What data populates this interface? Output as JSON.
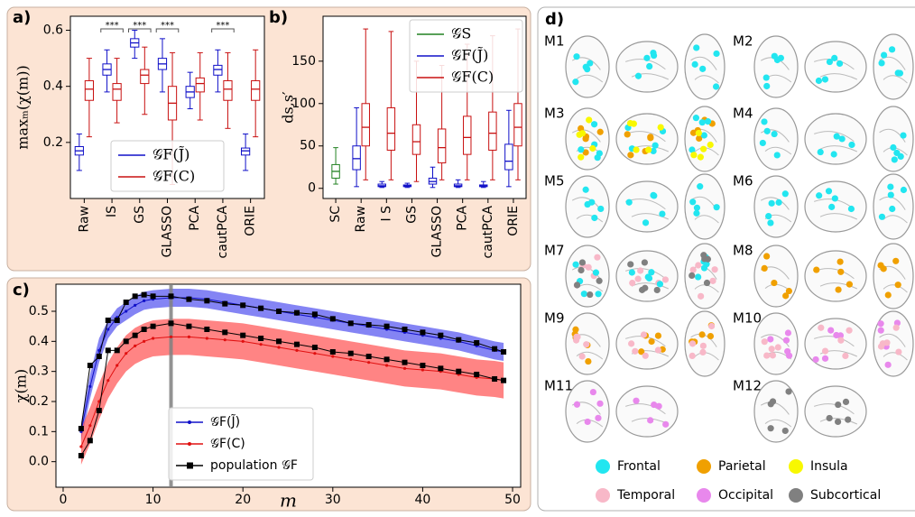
{
  "chart_data": [
    {
      "type": "box",
      "panel": "a)",
      "ylabel": "maxₘ(χ(m))",
      "categories": [
        "Raw",
        "IS",
        "GS",
        "GLASSO",
        "PCA",
        "cautPCA",
        "ORIE"
      ],
      "ylim": [
        0,
        0.65
      ],
      "yticks": [
        0.2,
        0.4,
        0.6
      ],
      "legend": "lower center",
      "series": [
        {
          "name": "𝒢F(J̃)",
          "color": "#1010c8",
          "values": [
            {
              "low": 0.1,
              "q1": 0.155,
              "median": 0.17,
              "q3": 0.185,
              "high": 0.23
            },
            {
              "low": 0.38,
              "q1": 0.44,
              "median": 0.46,
              "q3": 0.48,
              "high": 0.53
            },
            {
              "low": 0.5,
              "q1": 0.54,
              "median": 0.555,
              "q3": 0.57,
              "high": 0.6
            },
            {
              "low": 0.38,
              "q1": 0.46,
              "median": 0.48,
              "q3": 0.5,
              "high": 0.57
            },
            {
              "low": 0.32,
              "q1": 0.36,
              "median": 0.38,
              "q3": 0.4,
              "high": 0.45
            },
            {
              "low": 0.38,
              "q1": 0.44,
              "median": 0.46,
              "q3": 0.475,
              "high": 0.53
            },
            {
              "low": 0.1,
              "q1": 0.155,
              "median": 0.17,
              "q3": 0.18,
              "high": 0.23
            }
          ]
        },
        {
          "name": "𝒢F(C)",
          "color": "#c81010",
          "values": [
            {
              "low": 0.22,
              "q1": 0.35,
              "median": 0.39,
              "q3": 0.42,
              "high": 0.5
            },
            {
              "low": 0.27,
              "q1": 0.35,
              "median": 0.39,
              "q3": 0.41,
              "high": 0.5
            },
            {
              "low": 0.3,
              "q1": 0.41,
              "median": 0.44,
              "q3": 0.46,
              "high": 0.54
            },
            {
              "low": 0.05,
              "q1": 0.28,
              "median": 0.34,
              "q3": 0.4,
              "high": 0.52
            },
            {
              "low": 0.28,
              "q1": 0.38,
              "median": 0.41,
              "q3": 0.43,
              "high": 0.52
            },
            {
              "low": 0.25,
              "q1": 0.35,
              "median": 0.39,
              "q3": 0.42,
              "high": 0.52
            },
            {
              "low": 0.22,
              "q1": 0.35,
              "median": 0.39,
              "q3": 0.42,
              "high": 0.53
            }
          ]
        }
      ],
      "annotations": [
        {
          "label": "***",
          "category": "IS"
        },
        {
          "label": "***",
          "category": "GS"
        },
        {
          "label": "***",
          "category": "GLASSO"
        },
        {
          "label": "***",
          "category": "cautPCA"
        }
      ]
    },
    {
      "type": "box",
      "panel": "b)",
      "ylabel": "ds,s′",
      "categories": [
        "SC",
        "Raw",
        "I S",
        "GS",
        "GLASSO",
        "PCA",
        "cautPCA",
        "ORIE"
      ],
      "ylim": [
        -12,
        203
      ],
      "yticks": [
        0,
        50,
        100,
        150
      ],
      "legend": "upper right",
      "series": [
        {
          "name": "𝒢S",
          "color": "#208020",
          "values": [
            {
              "low": 5,
              "q1": 12,
              "median": 20,
              "q3": 28,
              "high": 48
            },
            null,
            null,
            null,
            null,
            null,
            null,
            null
          ]
        },
        {
          "name": "𝒢F(J̃)",
          "color": "#1010c8",
          "values": [
            null,
            {
              "low": 2,
              "q1": 22,
              "median": 35,
              "q3": 50,
              "high": 95
            },
            {
              "low": 1,
              "q1": 2,
              "median": 3,
              "q3": 5,
              "high": 8
            },
            {
              "low": 1,
              "q1": 2,
              "median": 3,
              "q3": 4,
              "high": 6
            },
            {
              "low": 1,
              "q1": 5,
              "median": 8,
              "q3": 12,
              "high": 25
            },
            {
              "low": 1,
              "q1": 2,
              "median": 3,
              "q3": 5,
              "high": 10
            },
            {
              "low": 1,
              "q1": 2,
              "median": 3,
              "q3": 4,
              "high": 8
            },
            {
              "low": 2,
              "q1": 22,
              "median": 32,
              "q3": 52,
              "high": 92
            }
          ]
        },
        {
          "name": "𝒢F(C)",
          "color": "#c81010",
          "values": [
            null,
            {
              "low": 10,
              "q1": 50,
              "median": 72,
              "q3": 100,
              "high": 188
            },
            {
              "low": 10,
              "q1": 45,
              "median": 65,
              "q3": 95,
              "high": 185
            },
            {
              "low": 8,
              "q1": 40,
              "median": 55,
              "q3": 75,
              "high": 150
            },
            {
              "low": 10,
              "q1": 30,
              "median": 48,
              "q3": 70,
              "high": 145
            },
            {
              "low": 10,
              "q1": 40,
              "median": 60,
              "q3": 85,
              "high": 170
            },
            {
              "low": 10,
              "q1": 45,
              "median": 65,
              "q3": 90,
              "high": 180
            },
            {
              "low": 10,
              "q1": 50,
              "median": 72,
              "q3": 100,
              "high": 188
            }
          ]
        }
      ]
    },
    {
      "type": "line",
      "panel": "c)",
      "ylabel": "χ(m)",
      "xlabel": "m",
      "x": [
        2,
        3,
        4,
        5,
        6,
        7,
        8,
        9,
        10,
        12,
        14,
        16,
        18,
        20,
        22,
        24,
        26,
        28,
        30,
        32,
        34,
        36,
        38,
        40,
        42,
        44,
        46,
        48,
        49
      ],
      "xlim": [
        -0.8,
        50.9
      ],
      "xticks": [
        0,
        10,
        20,
        30,
        40,
        50
      ],
      "ylim": [
        -0.085,
        0.59
      ],
      "yticks": [
        {
          "value": 0,
          "label": "0.0"
        },
        0.1,
        0.2,
        0.3,
        0.4,
        0.5
      ],
      "vline": 12,
      "vline_color": "#808080",
      "legend": "lower center",
      "series": [
        {
          "name": "𝒢F(J̃)",
          "color": "#1010c8",
          "marker": "dot",
          "values": [
            0.1,
            0.25,
            0.37,
            0.44,
            0.48,
            0.5,
            0.52,
            0.535,
            0.54,
            0.545,
            0.545,
            0.54,
            0.53,
            0.52,
            0.51,
            0.5,
            0.49,
            0.48,
            0.47,
            0.46,
            0.45,
            0.44,
            0.43,
            0.42,
            0.41,
            0.4,
            0.385,
            0.37,
            0.365
          ],
          "band_color": "#5050f0",
          "lower": [
            0.07,
            0.21,
            0.33,
            0.41,
            0.45,
            0.47,
            0.49,
            0.505,
            0.51,
            0.515,
            0.515,
            0.51,
            0.5,
            0.49,
            0.48,
            0.47,
            0.46,
            0.45,
            0.44,
            0.43,
            0.42,
            0.41,
            0.4,
            0.39,
            0.38,
            0.37,
            0.355,
            0.34,
            0.335
          ],
          "upper": [
            0.13,
            0.29,
            0.41,
            0.47,
            0.51,
            0.53,
            0.55,
            0.565,
            0.57,
            0.575,
            0.575,
            0.57,
            0.56,
            0.55,
            0.54,
            0.53,
            0.52,
            0.51,
            0.5,
            0.49,
            0.48,
            0.47,
            0.46,
            0.45,
            0.44,
            0.43,
            0.415,
            0.4,
            0.395
          ]
        },
        {
          "name": "𝒢F(C)",
          "color": "#e01010",
          "marker": "dot",
          "values": [
            0.05,
            0.12,
            0.2,
            0.27,
            0.32,
            0.36,
            0.385,
            0.4,
            0.41,
            0.415,
            0.415,
            0.41,
            0.405,
            0.4,
            0.39,
            0.38,
            0.37,
            0.36,
            0.35,
            0.34,
            0.33,
            0.32,
            0.31,
            0.305,
            0.3,
            0.29,
            0.28,
            0.275,
            0.27
          ],
          "band_color": "#ff5050",
          "lower": [
            -0.01,
            0.06,
            0.14,
            0.21,
            0.26,
            0.3,
            0.325,
            0.34,
            0.35,
            0.355,
            0.355,
            0.35,
            0.345,
            0.34,
            0.33,
            0.32,
            0.31,
            0.3,
            0.29,
            0.28,
            0.27,
            0.26,
            0.25,
            0.245,
            0.24,
            0.23,
            0.22,
            0.215,
            0.21
          ],
          "upper": [
            0.11,
            0.18,
            0.26,
            0.33,
            0.38,
            0.42,
            0.445,
            0.46,
            0.47,
            0.475,
            0.475,
            0.47,
            0.465,
            0.46,
            0.45,
            0.44,
            0.43,
            0.42,
            0.41,
            0.4,
            0.39,
            0.38,
            0.37,
            0.365,
            0.36,
            0.35,
            0.34,
            0.335,
            0.33
          ]
        },
        {
          "name": "population 𝒢F",
          "color": "#000000",
          "marker": "square",
          "values": [
            0.11,
            0.32,
            0.35,
            0.47,
            0.47,
            0.53,
            0.55,
            0.555,
            0.55,
            0.55,
            0.54,
            0.535,
            0.525,
            0.52,
            0.51,
            0.5,
            0.495,
            0.49,
            0.475,
            0.46,
            0.455,
            0.45,
            0.44,
            0.43,
            0.42,
            0.405,
            0.395,
            0.375,
            0.365
          ]
        },
        {
          "name": "population 𝒢F",
          "color": "#000000",
          "marker": "square",
          "values": [
            0.02,
            0.07,
            0.17,
            0.37,
            0.37,
            0.4,
            0.42,
            0.44,
            0.45,
            0.46,
            0.45,
            0.44,
            0.43,
            0.42,
            0.41,
            0.4,
            0.39,
            0.38,
            0.365,
            0.36,
            0.35,
            0.34,
            0.33,
            0.32,
            0.31,
            0.3,
            0.29,
            0.275,
            0.27
          ]
        }
      ]
    },
    {
      "type": "brain-modules",
      "panel": "d)",
      "regions": [
        {
          "name": "Frontal",
          "color": "#22e6f0"
        },
        {
          "name": "Parietal",
          "color": "#f0a000"
        },
        {
          "name": "Insula",
          "color": "#f8f800"
        },
        {
          "name": "Temporal",
          "color": "#f8b8c8"
        },
        {
          "name": "Occipital",
          "color": "#e888ec"
        },
        {
          "name": "Subcortical",
          "color": "#808080"
        }
      ],
      "modules": [
        {
          "label": "M1",
          "regions": [
            "Frontal"
          ]
        },
        {
          "label": "M2",
          "regions": [
            "Frontal"
          ]
        },
        {
          "label": "M3",
          "regions": [
            "Parietal",
            "Frontal",
            "Insula"
          ]
        },
        {
          "label": "M4",
          "regions": [
            "Frontal"
          ]
        },
        {
          "label": "M5",
          "regions": [
            "Frontal"
          ]
        },
        {
          "label": "M6",
          "regions": [
            "Frontal"
          ]
        },
        {
          "label": "M7",
          "regions": [
            "Temporal",
            "Frontal",
            "Subcortical"
          ]
        },
        {
          "label": "M8",
          "regions": [
            "Parietal"
          ]
        },
        {
          "label": "M9",
          "regions": [
            "Parietal",
            "Temporal"
          ]
        },
        {
          "label": "M10",
          "regions": [
            "Occipital",
            "Temporal"
          ]
        },
        {
          "label": "M11",
          "regions": [
            "Occipital"
          ]
        },
        {
          "label": "M12",
          "regions": [
            "Subcortical"
          ]
        }
      ]
    }
  ]
}
